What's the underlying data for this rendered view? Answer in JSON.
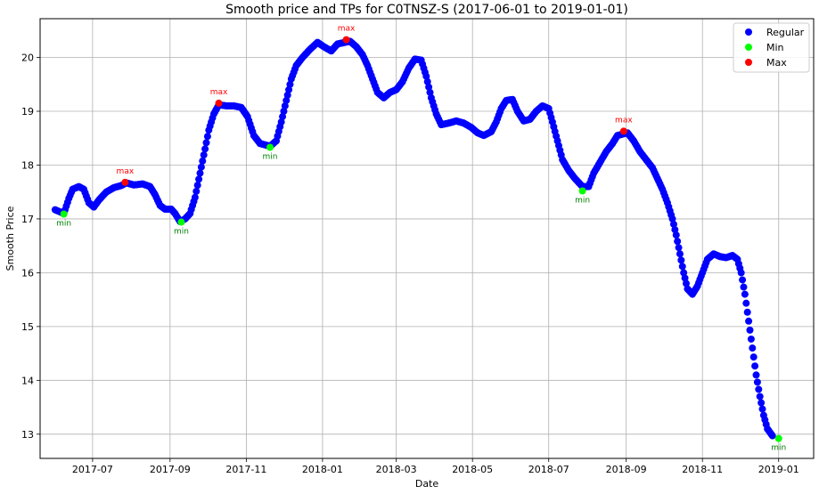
{
  "chart_data": {
    "type": "scatter",
    "title": "Smooth price and TPs for C0TNSZ-S (2017-06-01 to 2019-01-01)",
    "xlabel": "Date",
    "ylabel": "Smooth Price",
    "xlim": [
      "2017-05-20",
      "2019-01-29"
    ],
    "ylim": [
      12.55,
      20.72
    ],
    "x_ticks": [
      "2017-07",
      "2017-09",
      "2017-11",
      "2018-01",
      "2018-03",
      "2018-05",
      "2018-07",
      "2018-09",
      "2018-11",
      "2019-01"
    ],
    "y_ticks": [
      13,
      14,
      15,
      16,
      17,
      18,
      19,
      20
    ],
    "grid": true,
    "legend_placement": "top-right",
    "legend": [
      {
        "label": "Regular",
        "color": "#0000ff"
      },
      {
        "label": "Min",
        "color": "#00ff00"
      },
      {
        "label": "Max",
        "color": "#ff0000"
      }
    ],
    "regular_series": {
      "name": "Regular",
      "color": "#0000ff",
      "points": [
        [
          "2017-06-01",
          17.17
        ],
        [
          "2017-06-08",
          17.1
        ],
        [
          "2017-06-12",
          17.38
        ],
        [
          "2017-06-15",
          17.55
        ],
        [
          "2017-06-20",
          17.6
        ],
        [
          "2017-06-24",
          17.55
        ],
        [
          "2017-06-28",
          17.3
        ],
        [
          "2017-07-02",
          17.22
        ],
        [
          "2017-07-06",
          17.35
        ],
        [
          "2017-07-12",
          17.5
        ],
        [
          "2017-07-18",
          17.58
        ],
        [
          "2017-07-24",
          17.62
        ],
        [
          "2017-07-28",
          17.67
        ],
        [
          "2017-08-03",
          17.63
        ],
        [
          "2017-08-10",
          17.65
        ],
        [
          "2017-08-16",
          17.6
        ],
        [
          "2017-08-20",
          17.45
        ],
        [
          "2017-08-24",
          17.25
        ],
        [
          "2017-08-28",
          17.18
        ],
        [
          "2017-09-02",
          17.18
        ],
        [
          "2017-09-05",
          17.1
        ],
        [
          "2017-09-09",
          16.95
        ],
        [
          "2017-09-13",
          17.0
        ],
        [
          "2017-09-17",
          17.1
        ],
        [
          "2017-09-21",
          17.4
        ],
        [
          "2017-09-25",
          17.85
        ],
        [
          "2017-09-29",
          18.3
        ],
        [
          "2017-10-02",
          18.65
        ],
        [
          "2017-10-06",
          18.95
        ],
        [
          "2017-10-10",
          19.12
        ],
        [
          "2017-10-16",
          19.1
        ],
        [
          "2017-10-22",
          19.1
        ],
        [
          "2017-10-28",
          19.07
        ],
        [
          "2017-11-02",
          18.9
        ],
        [
          "2017-11-07",
          18.55
        ],
        [
          "2017-11-12",
          18.4
        ],
        [
          "2017-11-20",
          18.35
        ],
        [
          "2017-11-25",
          18.45
        ],
        [
          "2017-11-29",
          18.8
        ],
        [
          "2017-12-03",
          19.2
        ],
        [
          "2017-12-07",
          19.6
        ],
        [
          "2017-12-11",
          19.85
        ],
        [
          "2017-12-16",
          20.0
        ],
        [
          "2017-12-22",
          20.15
        ],
        [
          "2017-12-28",
          20.28
        ],
        [
          "2018-01-02",
          20.2
        ],
        [
          "2018-01-08",
          20.12
        ],
        [
          "2018-01-13",
          20.25
        ],
        [
          "2018-01-23",
          20.3
        ],
        [
          "2018-01-28",
          20.2
        ],
        [
          "2018-02-02",
          20.05
        ],
        [
          "2018-02-06",
          19.85
        ],
        [
          "2018-02-10",
          19.6
        ],
        [
          "2018-02-14",
          19.35
        ],
        [
          "2018-02-19",
          19.25
        ],
        [
          "2018-02-24",
          19.35
        ],
        [
          "2018-03-01",
          19.4
        ],
        [
          "2018-03-06",
          19.55
        ],
        [
          "2018-03-11",
          19.8
        ],
        [
          "2018-03-16",
          19.97
        ],
        [
          "2018-03-21",
          19.95
        ],
        [
          "2018-03-25",
          19.65
        ],
        [
          "2018-03-29",
          19.25
        ],
        [
          "2018-04-02",
          18.95
        ],
        [
          "2018-04-06",
          18.75
        ],
        [
          "2018-04-12",
          18.78
        ],
        [
          "2018-04-18",
          18.82
        ],
        [
          "2018-04-24",
          18.78
        ],
        [
          "2018-04-30",
          18.7
        ],
        [
          "2018-05-05",
          18.6
        ],
        [
          "2018-05-10",
          18.55
        ],
        [
          "2018-05-16",
          18.62
        ],
        [
          "2018-05-20",
          18.8
        ],
        [
          "2018-05-24",
          19.05
        ],
        [
          "2018-05-28",
          19.2
        ],
        [
          "2018-06-02",
          19.22
        ],
        [
          "2018-06-06",
          19.0
        ],
        [
          "2018-06-11",
          18.82
        ],
        [
          "2018-06-16",
          18.85
        ],
        [
          "2018-06-21",
          19.0
        ],
        [
          "2018-06-26",
          19.1
        ],
        [
          "2018-07-01",
          19.05
        ],
        [
          "2018-07-04",
          18.8
        ],
        [
          "2018-07-08",
          18.45
        ],
        [
          "2018-07-12",
          18.1
        ],
        [
          "2018-07-17",
          17.9
        ],
        [
          "2018-07-22",
          17.75
        ],
        [
          "2018-07-28",
          17.6
        ],
        [
          "2018-08-02",
          17.6
        ],
        [
          "2018-08-06",
          17.85
        ],
        [
          "2018-08-11",
          18.05
        ],
        [
          "2018-08-16",
          18.25
        ],
        [
          "2018-08-21",
          18.4
        ],
        [
          "2018-08-25",
          18.55
        ],
        [
          "2018-09-02",
          18.6
        ],
        [
          "2018-09-07",
          18.45
        ],
        [
          "2018-09-12",
          18.25
        ],
        [
          "2018-09-17",
          18.1
        ],
        [
          "2018-09-22",
          17.95
        ],
        [
          "2018-09-26",
          17.75
        ],
        [
          "2018-09-30",
          17.55
        ],
        [
          "2018-10-04",
          17.3
        ],
        [
          "2018-10-08",
          17.0
        ],
        [
          "2018-10-11",
          16.7
        ],
        [
          "2018-10-14",
          16.35
        ],
        [
          "2018-10-17",
          16.0
        ],
        [
          "2018-10-20",
          15.7
        ],
        [
          "2018-10-24",
          15.6
        ],
        [
          "2018-10-28",
          15.75
        ],
        [
          "2018-11-01",
          16.0
        ],
        [
          "2018-11-05",
          16.25
        ],
        [
          "2018-11-10",
          16.35
        ],
        [
          "2018-11-15",
          16.3
        ],
        [
          "2018-11-20",
          16.28
        ],
        [
          "2018-11-25",
          16.32
        ],
        [
          "2018-11-29",
          16.25
        ],
        [
          "2018-12-02",
          16.0
        ],
        [
          "2018-12-05",
          15.6
        ],
        [
          "2018-12-08",
          15.1
        ],
        [
          "2018-12-11",
          14.6
        ],
        [
          "2018-12-14",
          14.1
        ],
        [
          "2018-12-17",
          13.7
        ],
        [
          "2018-12-20",
          13.35
        ],
        [
          "2018-12-23",
          13.1
        ],
        [
          "2018-12-27",
          12.97
        ]
      ]
    },
    "min_points": {
      "name": "Min",
      "color": "#00ff00",
      "label": "min",
      "points": [
        [
          "2017-06-08",
          17.09
        ],
        [
          "2017-09-10",
          16.94
        ],
        [
          "2017-11-20",
          18.33
        ],
        [
          "2018-07-28",
          17.52
        ],
        [
          "2019-01-01",
          12.92
        ]
      ]
    },
    "max_points": {
      "name": "Max",
      "color": "#ff0000",
      "label": "max",
      "points": [
        [
          "2017-07-27",
          17.68
        ],
        [
          "2017-10-10",
          19.15
        ],
        [
          "2018-01-20",
          20.33
        ],
        [
          "2018-08-30",
          18.63
        ]
      ]
    }
  }
}
